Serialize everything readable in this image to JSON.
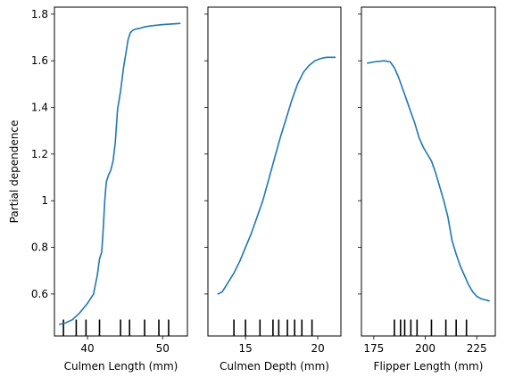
{
  "chart_data": [
    {
      "type": "line",
      "xlabel": "Culmen Length (mm)",
      "ylabel": "Partial dependence",
      "xlim": [
        35.6,
        53.3
      ],
      "ylim": [
        0.42,
        1.83
      ],
      "xticks": [
        40,
        50
      ],
      "yticks": [
        0.6,
        0.8,
        1.0,
        1.2,
        1.4,
        1.6,
        1.8
      ],
      "ytick_labels_visible": true,
      "color": "#1f77b4",
      "series": [
        {
          "x": [
            36.3,
            37.0,
            38.0,
            39.0,
            40.0,
            40.8,
            41.3,
            41.6,
            41.9,
            42.1,
            42.3,
            42.5,
            42.8,
            43.1,
            43.4,
            43.7,
            44.0,
            44.4,
            44.8,
            45.1,
            45.4,
            45.7,
            46.0,
            46.3,
            46.6,
            47.0,
            47.6,
            48.5,
            50.0,
            52.3
          ],
          "y": [
            0.47,
            0.475,
            0.49,
            0.52,
            0.56,
            0.6,
            0.68,
            0.75,
            0.78,
            0.88,
            1.0,
            1.08,
            1.11,
            1.13,
            1.17,
            1.25,
            1.39,
            1.47,
            1.57,
            1.63,
            1.69,
            1.72,
            1.73,
            1.735,
            1.737,
            1.74,
            1.745,
            1.75,
            1.755,
            1.76
          ]
        }
      ],
      "deciles": [
        36.8,
        38.5,
        39.8,
        41.6,
        44.4,
        45.6,
        47.6,
        49.5,
        50.8
      ]
    },
    {
      "type": "line",
      "xlabel": "Culmen Depth (mm)",
      "ylabel": "",
      "xlim": [
        12.4,
        21.6
      ],
      "ylim": [
        0.42,
        1.83
      ],
      "xticks": [
        15,
        20
      ],
      "yticks": [
        0.6,
        0.8,
        1.0,
        1.2,
        1.4,
        1.6,
        1.8
      ],
      "ytick_labels_visible": false,
      "color": "#1f77b4",
      "series": [
        {
          "x": [
            13.1,
            13.4,
            13.8,
            14.2,
            14.6,
            15.0,
            15.4,
            15.8,
            16.2,
            16.6,
            17.0,
            17.4,
            17.8,
            18.2,
            18.6,
            19.0,
            19.4,
            19.8,
            20.2,
            20.6,
            21.2
          ],
          "y": [
            0.6,
            0.61,
            0.65,
            0.69,
            0.74,
            0.8,
            0.86,
            0.93,
            1.0,
            1.09,
            1.18,
            1.27,
            1.35,
            1.43,
            1.5,
            1.55,
            1.58,
            1.6,
            1.61,
            1.615,
            1.615
          ]
        }
      ],
      "deciles": [
        14.2,
        15.0,
        16.0,
        16.9,
        17.3,
        17.9,
        18.4,
        18.9,
        19.6
      ]
    },
    {
      "type": "line",
      "xlabel": "Flipper Length (mm)",
      "ylabel": "",
      "xlim": [
        169,
        234
      ],
      "ylim": [
        0.42,
        1.83
      ],
      "xticks": [
        175,
        200,
        225
      ],
      "yticks": [
        0.6,
        0.8,
        1.0,
        1.2,
        1.4,
        1.6,
        1.8
      ],
      "ytick_labels_visible": false,
      "color": "#1f77b4",
      "series": [
        {
          "x": [
            172,
            175,
            180,
            183,
            185,
            187,
            189,
            191,
            193,
            195,
            197,
            199,
            201,
            203,
            205,
            207,
            209,
            211,
            213,
            215,
            217,
            219,
            221,
            223,
            225,
            227,
            229,
            231
          ],
          "y": [
            1.59,
            1.595,
            1.6,
            1.595,
            1.57,
            1.53,
            1.48,
            1.43,
            1.38,
            1.33,
            1.27,
            1.23,
            1.2,
            1.17,
            1.12,
            1.06,
            1.0,
            0.93,
            0.83,
            0.77,
            0.72,
            0.68,
            0.64,
            0.61,
            0.59,
            0.58,
            0.575,
            0.57
          ]
        }
      ],
      "deciles": [
        185,
        188,
        190,
        193,
        196,
        203,
        210,
        215,
        220
      ]
    }
  ]
}
